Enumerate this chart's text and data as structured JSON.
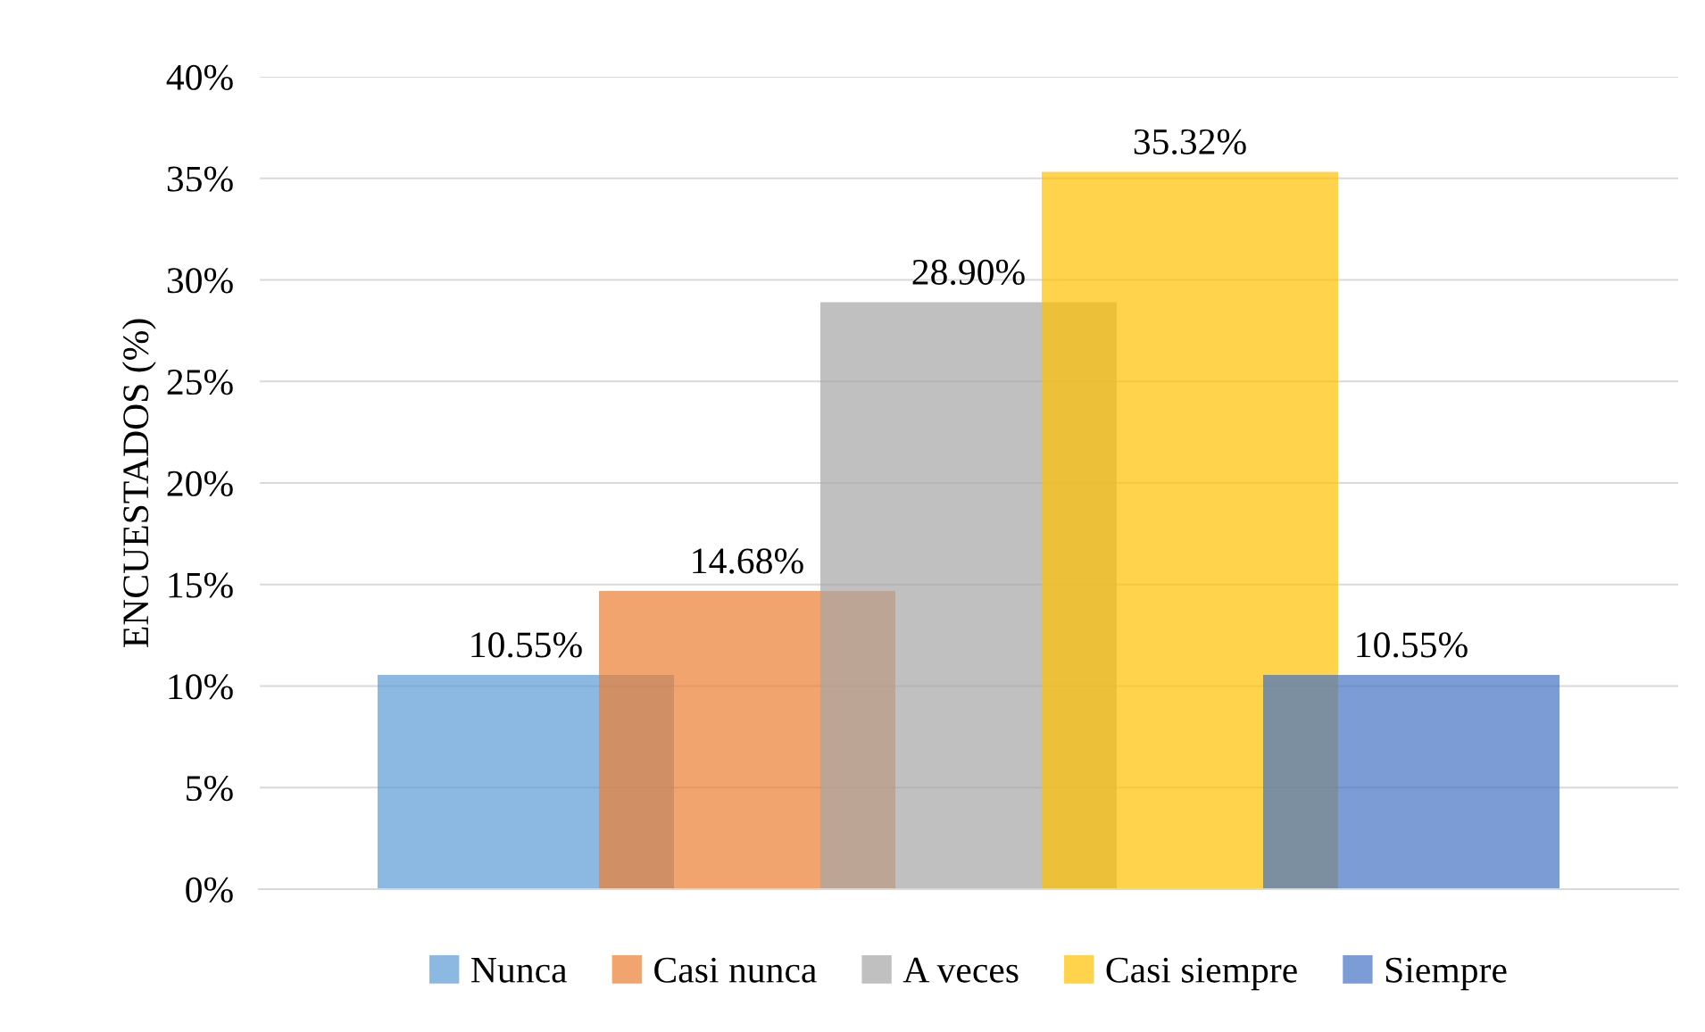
{
  "chart_data": {
    "type": "bar",
    "ylabel": "ENCUESTADOS (%)",
    "categories": [
      null
    ],
    "series": [
      {
        "name": "Nunca",
        "color": "#5b9bd5",
        "values": [
          10.55
        ],
        "value_labels": [
          "10.55%"
        ]
      },
      {
        "name": "Casi nunca",
        "color": "#ed7d31",
        "values": [
          14.68
        ],
        "value_labels": [
          "14.68%"
        ]
      },
      {
        "name": "A veces",
        "color": "#a5a5a5",
        "values": [
          28.9
        ],
        "value_labels": [
          "28.90%"
        ]
      },
      {
        "name": "Casi siempre",
        "color": "#ffc000",
        "values": [
          35.32
        ],
        "value_labels": [
          "35.32%"
        ]
      },
      {
        "name": "Siempre",
        "color": "#4472c4",
        "values": [
          10.55
        ],
        "value_labels": [
          "10.55%"
        ]
      }
    ],
    "ylim": [
      0,
      40
    ],
    "yticks": [
      {
        "value": 0,
        "label": "0%"
      },
      {
        "value": 5,
        "label": "5%"
      },
      {
        "value": 10,
        "label": "10%"
      },
      {
        "value": 15,
        "label": "15%"
      },
      {
        "value": 20,
        "label": "20%"
      },
      {
        "value": 25,
        "label": "25%"
      },
      {
        "value": 30,
        "label": "30%"
      },
      {
        "value": 35,
        "label": "35%"
      },
      {
        "value": 40,
        "label": "40%"
      }
    ],
    "grid": "y",
    "legend": "bottom"
  }
}
